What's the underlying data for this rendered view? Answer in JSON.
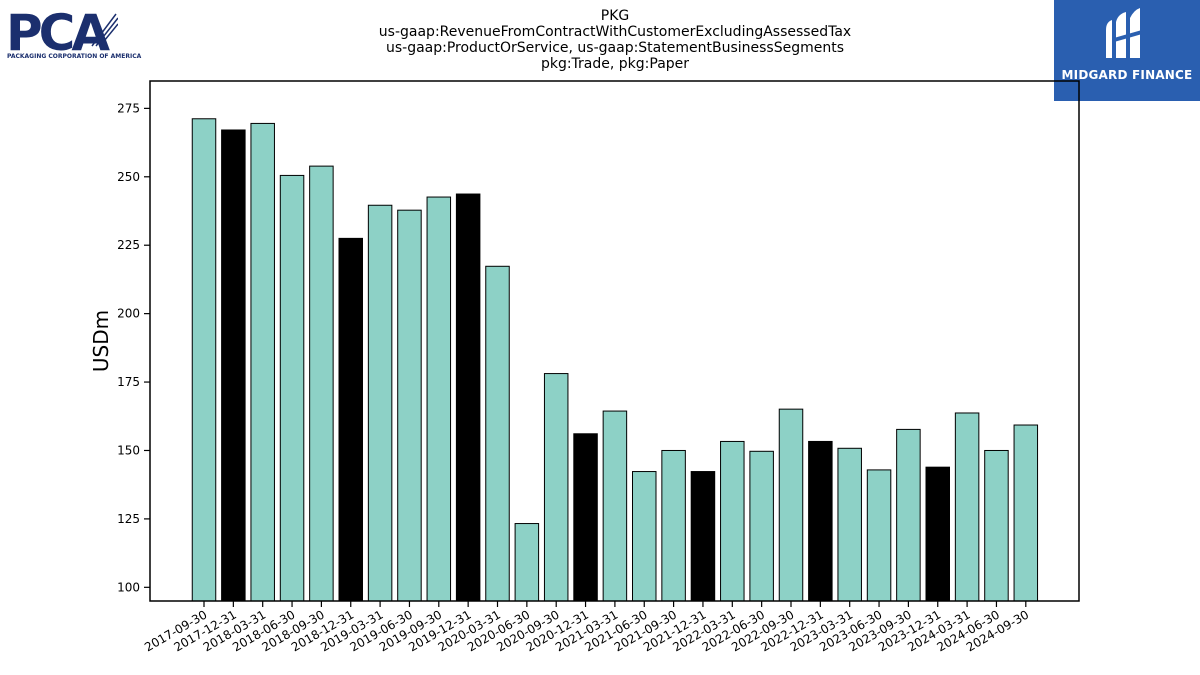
{
  "chart_data": {
    "type": "bar",
    "title_lines": [
      "PKG",
      "us-gaap:RevenueFromContractWithCustomerExcludingAssessedTax",
      "us-gaap:ProductOrService, us-gaap:StatementBusinessSegments",
      "pkg:Trade, pkg:Paper"
    ],
    "ylabel": "USDm",
    "xlabel": "",
    "ylim": [
      95,
      285
    ],
    "yticks": [
      100,
      125,
      150,
      175,
      200,
      225,
      250,
      275
    ],
    "grid": false,
    "categories": [
      "2017-09-30",
      "2017-12-31",
      "2018-03-31",
      "2018-06-30",
      "2018-09-30",
      "2018-12-31",
      "2019-03-31",
      "2019-06-30",
      "2019-09-30",
      "2019-12-31",
      "2020-03-31",
      "2020-06-30",
      "2020-09-30",
      "2020-12-31",
      "2021-03-31",
      "2021-06-30",
      "2021-09-30",
      "2021-12-31",
      "2022-03-31",
      "2022-06-30",
      "2022-09-30",
      "2022-12-31",
      "2023-03-31",
      "2023-06-30",
      "2023-09-30",
      "2023-12-31",
      "2024-03-31",
      "2024-06-30",
      "2024-09-30"
    ],
    "values": [
      271.2,
      267.1,
      269.5,
      250.5,
      253.9,
      227.5,
      239.6,
      237.8,
      242.6,
      243.7,
      217.3,
      123.3,
      178.1,
      156.1,
      164.4,
      142.3,
      150.0,
      142.3,
      153.3,
      149.7,
      165.1,
      153.3,
      150.8,
      142.9,
      157.7,
      143.9,
      163.7,
      150.0,
      159.3
    ],
    "highlight": [
      false,
      true,
      false,
      false,
      false,
      true,
      false,
      false,
      false,
      true,
      false,
      false,
      false,
      true,
      false,
      false,
      false,
      true,
      false,
      false,
      false,
      true,
      false,
      false,
      false,
      true,
      false,
      false,
      false
    ],
    "colors": {
      "bar": "#8dd1c6",
      "highlight": "#000000",
      "edge": "#000000"
    }
  },
  "logos": {
    "left_main": "PCA",
    "left_sub": "PACKAGING CORPORATION OF AMERICA",
    "right_text": "MIDGARD FINANCE"
  }
}
